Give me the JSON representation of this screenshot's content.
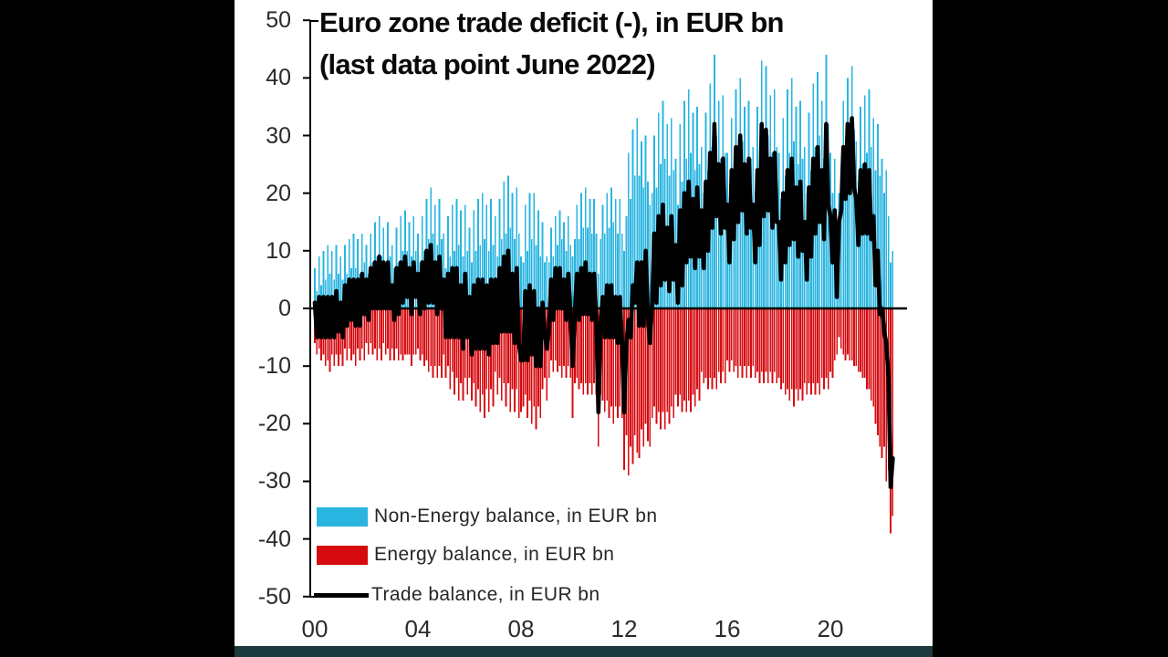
{
  "frame": {
    "background_color": "#000000",
    "panel_color": "#ffffff",
    "bottom_accent_color": "#1d3b3f"
  },
  "chart_data": {
    "type": "bar",
    "title_line1": "Euro zone trade deficit (-), in EUR bn",
    "title_line2": "(last data point June 2022)",
    "x_start": "2000-01",
    "x_end": "2022-06",
    "x_tick_labels": [
      "00",
      "04",
      "08",
      "12",
      "16",
      "20"
    ],
    "x_tick_month_index": [
      0,
      48,
      96,
      144,
      192,
      240
    ],
    "y_ticks": [
      50,
      40,
      30,
      20,
      10,
      0,
      -10,
      -20,
      -30,
      -40,
      -50
    ],
    "ylim": [
      -50,
      50
    ],
    "grid": "off",
    "legend_position": "inside bottom-left",
    "series": [
      {
        "name": "Non-Energy balance, in EUR bn",
        "type": "bar",
        "color": "#2ab4e0",
        "values": [
          7,
          3,
          9,
          4,
          10,
          5,
          11,
          6,
          10,
          5,
          11,
          6,
          9,
          5,
          11,
          6,
          12,
          7,
          13,
          7,
          12,
          6,
          13,
          8,
          11,
          6,
          13,
          8,
          15,
          9,
          16,
          9,
          14,
          8,
          15,
          9,
          11,
          7,
          14,
          8,
          16,
          10,
          17,
          10,
          15,
          9,
          16,
          10,
          13,
          8,
          16,
          10,
          19,
          12,
          21,
          13,
          18,
          11,
          19,
          12,
          13,
          7,
          16,
          9,
          18,
          10,
          19,
          11,
          17,
          9,
          18,
          10,
          14,
          8,
          17,
          10,
          19,
          11,
          20,
          12,
          18,
          10,
          19,
          11,
          16,
          9,
          19,
          12,
          22,
          13,
          23,
          14,
          20,
          12,
          21,
          13,
          9,
          8,
          18,
          10,
          20,
          12,
          20,
          11,
          17,
          9,
          15,
          8,
          9,
          8,
          14,
          9,
          16,
          11,
          17,
          12,
          15,
          10,
          16,
          11,
          9,
          12,
          18,
          12,
          20,
          14,
          21,
          14,
          19,
          13,
          19,
          13,
          6,
          12,
          18,
          13,
          20,
          14,
          21,
          15,
          19,
          13,
          19,
          13,
          10,
          16,
          27,
          19,
          31,
          23,
          33,
          23,
          29,
          21,
          30,
          22,
          18,
          20,
          30,
          21,
          34,
          25,
          36,
          26,
          32,
          23,
          33,
          24,
          26,
          18,
          32,
          22,
          36,
          26,
          38,
          27,
          34,
          24,
          35,
          25,
          28,
          20,
          34,
          24,
          39,
          28,
          44,
          30,
          36,
          26,
          37,
          27,
          27,
          19,
          33,
          23,
          38,
          27,
          40,
          29,
          35,
          25,
          36,
          26,
          28,
          20,
          35,
          24,
          43,
          29,
          42,
          30,
          37,
          27,
          38,
          28,
          27,
          19,
          33,
          23,
          38,
          27,
          40,
          29,
          35,
          25,
          36,
          26,
          28,
          20,
          34,
          24,
          39,
          28,
          41,
          30,
          36,
          26,
          44,
          32,
          27,
          20,
          26,
          10,
          20,
          24,
          36,
          28,
          40,
          29,
          42,
          31,
          29,
          22,
          35,
          25,
          37,
          27,
          38,
          28,
          33,
          24,
          32,
          23,
          26,
          20,
          24,
          16,
          8,
          10
        ]
      },
      {
        "name": "Energy balance, in EUR bn",
        "type": "bar",
        "color": "#d60b10",
        "values": [
          -6,
          -8,
          -7,
          -9,
          -8,
          -10,
          -9,
          -11,
          -8,
          -10,
          -8,
          -10,
          -8,
          -10,
          -7,
          -9,
          -7,
          -9,
          -8,
          -10,
          -7,
          -9,
          -7,
          -9,
          -6,
          -8,
          -6,
          -8,
          -7,
          -9,
          -7,
          -9,
          -6,
          -8,
          -7,
          -9,
          -7,
          -9,
          -7,
          -9,
          -8,
          -9,
          -8,
          -8,
          -8,
          -10,
          -8,
          -8,
          -7,
          -9,
          -8,
          -10,
          -9,
          -11,
          -10,
          -12,
          -10,
          -12,
          -10,
          -12,
          -8,
          -12,
          -10,
          -14,
          -11,
          -15,
          -12,
          -16,
          -13,
          -16,
          -12,
          -15,
          -12,
          -16,
          -13,
          -17,
          -14,
          -18,
          -15,
          -19,
          -14,
          -18,
          -14,
          -17,
          -11,
          -15,
          -12,
          -16,
          -13,
          -17,
          -13,
          -18,
          -14,
          -18,
          -14,
          -19,
          -18,
          -17,
          -15,
          -19,
          -16,
          -20,
          -17,
          -21,
          -17,
          -19,
          -14,
          -12,
          -16,
          -12,
          -9,
          -11,
          -9,
          -11,
          -10,
          -12,
          -10,
          -12,
          -10,
          -12,
          -19,
          -13,
          -12,
          -14,
          -13,
          -15,
          -13,
          -15,
          -13,
          -15,
          -13,
          -15,
          -24,
          -15,
          -16,
          -18,
          -16,
          -19,
          -17,
          -20,
          -17,
          -19,
          -17,
          -19,
          -28,
          -22,
          -29,
          -24,
          -27,
          -22,
          -25,
          -26,
          -21,
          -24,
          -20,
          -23,
          -24,
          -19,
          -17,
          -20,
          -18,
          -21,
          -18,
          -21,
          -18,
          -20,
          -17,
          -19,
          -15,
          -17,
          -15,
          -18,
          -16,
          -18,
          -16,
          -18,
          -15,
          -17,
          -14,
          -16,
          -11,
          -13,
          -12,
          -14,
          -12,
          -14,
          -12,
          -14,
          -11,
          -13,
          -11,
          -13,
          -9,
          -11,
          -9,
          -11,
          -10,
          -12,
          -10,
          -12,
          -10,
          -12,
          -10,
          -12,
          -10,
          -12,
          -11,
          -13,
          -11,
          -13,
          -11,
          -13,
          -11,
          -13,
          -11,
          -13,
          -12,
          -14,
          -13,
          -15,
          -14,
          -16,
          -14,
          -17,
          -14,
          -16,
          -14,
          -16,
          -13,
          -15,
          -13,
          -15,
          -13,
          -15,
          -13,
          -15,
          -12,
          -14,
          -12,
          -14,
          -11,
          -12,
          -9,
          -8,
          -5,
          -7,
          -8,
          -9,
          -8,
          -9,
          -9,
          -10,
          -10,
          -11,
          -11,
          -12,
          -12,
          -14,
          -14,
          -16,
          -17,
          -20,
          -22,
          -24,
          -26,
          -24,
          -30,
          -28,
          -39,
          -36
        ]
      },
      {
        "name": "Trade balance, in EUR bn",
        "type": "line",
        "color": "#000000",
        "values_note": "equals the sum of the Non-Energy and Energy balance series for each month"
      }
    ]
  }
}
